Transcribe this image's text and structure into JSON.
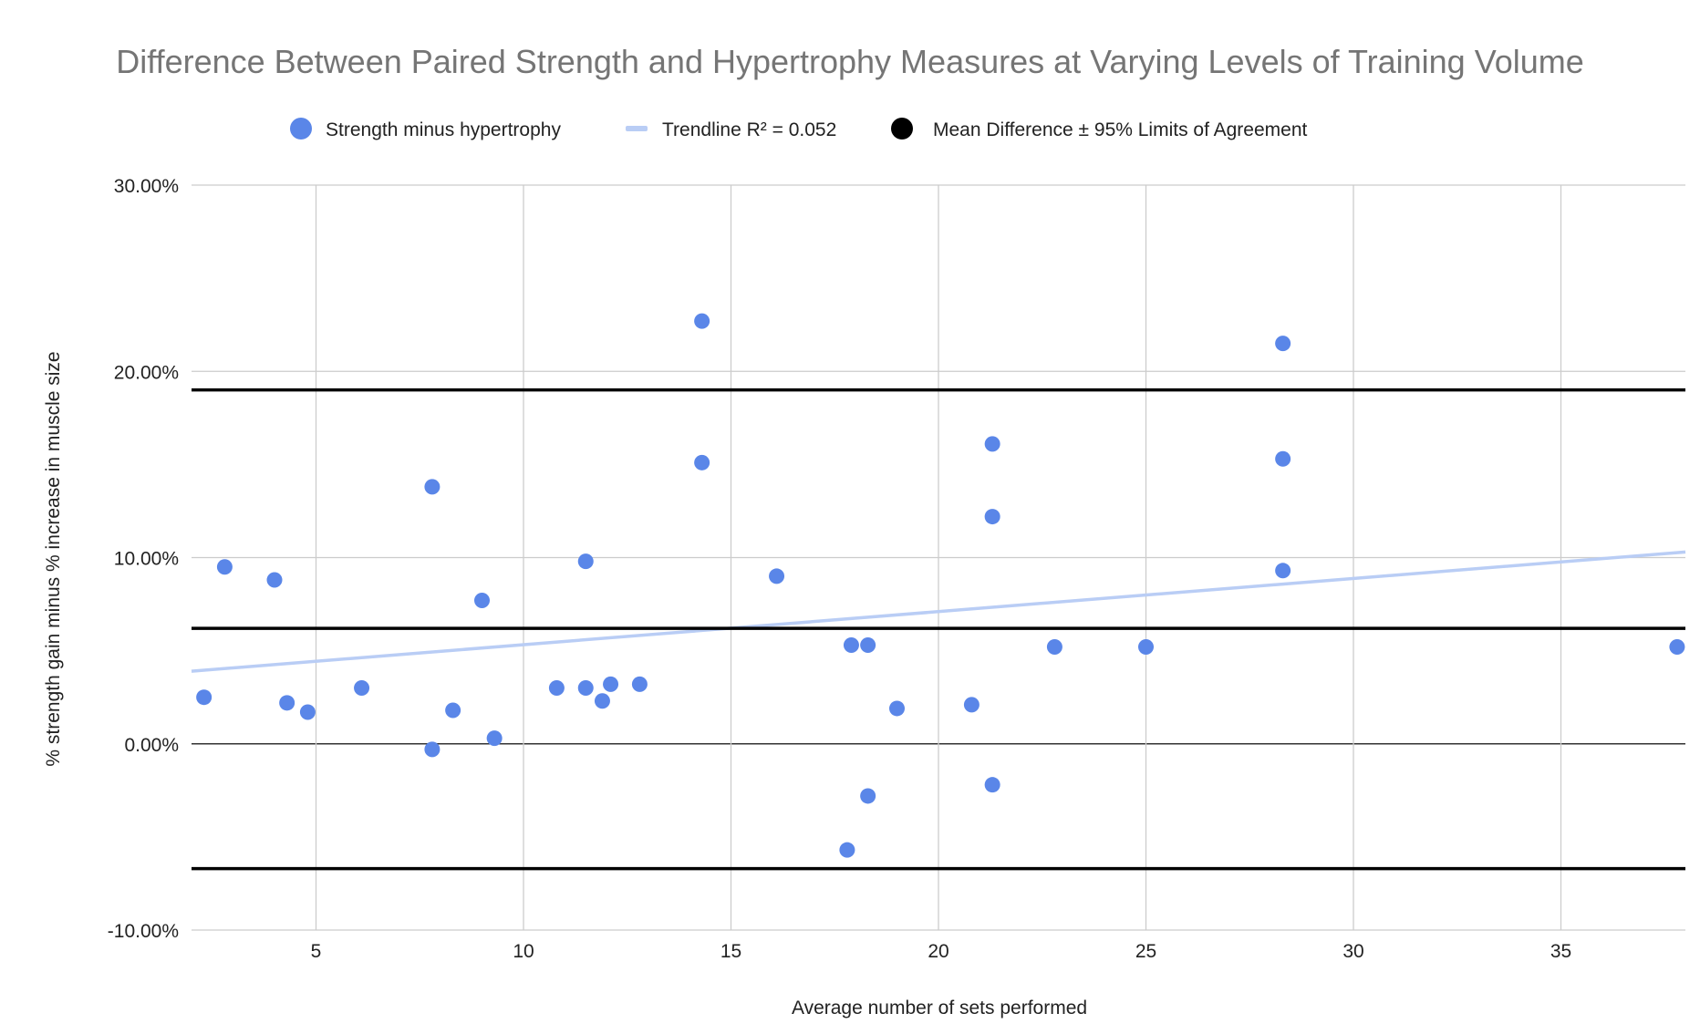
{
  "chart_data": {
    "type": "scatter",
    "title": "Difference Between Paired Strength and Hypertrophy Measures at Varying Levels of Training Volume",
    "xlabel": "Average number of sets performed",
    "ylabel": "% strength gain minus % increase in muscle size",
    "xlim": [
      2,
      38
    ],
    "ylim": [
      -10,
      30
    ],
    "x_ticks": [
      5,
      10,
      15,
      20,
      25,
      30,
      35
    ],
    "x_tick_labels": [
      "5",
      "10",
      "15",
      "20",
      "25",
      "30",
      "35"
    ],
    "y_ticks": [
      -10,
      0,
      10,
      20,
      30
    ],
    "y_tick_labels": [
      "-10.00%",
      "0.00%",
      "10.00%",
      "20.00%",
      "30.00%"
    ],
    "grid": true,
    "legend_position": "top",
    "legend": [
      {
        "label": "Strength minus hypertrophy",
        "marker": "circle",
        "color": "#5a86e8"
      },
      {
        "label": "Trendline R² = 0.052",
        "marker": "line",
        "color": "#b9cdf5"
      },
      {
        "label": "Mean Difference ± 95% Limits of Agreement",
        "marker": "circle",
        "color": "#000000"
      }
    ],
    "series": [
      {
        "name": "Strength minus hypertrophy",
        "color": "#5a86e8",
        "points": [
          {
            "x": 2.3,
            "y": 2.5
          },
          {
            "x": 2.8,
            "y": 9.5
          },
          {
            "x": 4.0,
            "y": 8.8
          },
          {
            "x": 4.3,
            "y": 2.2
          },
          {
            "x": 4.8,
            "y": 1.7
          },
          {
            "x": 6.1,
            "y": 3.0
          },
          {
            "x": 7.8,
            "y": 13.8
          },
          {
            "x": 7.8,
            "y": -0.3
          },
          {
            "x": 8.3,
            "y": 1.8
          },
          {
            "x": 9.0,
            "y": 7.7
          },
          {
            "x": 9.3,
            "y": 0.3
          },
          {
            "x": 10.8,
            "y": 3.0
          },
          {
            "x": 11.5,
            "y": 9.8
          },
          {
            "x": 11.5,
            "y": 3.0
          },
          {
            "x": 11.9,
            "y": 2.3
          },
          {
            "x": 12.1,
            "y": 3.2
          },
          {
            "x": 12.8,
            "y": 3.2
          },
          {
            "x": 14.3,
            "y": 22.7
          },
          {
            "x": 14.3,
            "y": 15.1
          },
          {
            "x": 16.1,
            "y": 9.0
          },
          {
            "x": 17.8,
            "y": -5.7
          },
          {
            "x": 17.9,
            "y": 5.3
          },
          {
            "x": 18.3,
            "y": 5.3
          },
          {
            "x": 18.3,
            "y": -2.8
          },
          {
            "x": 19.0,
            "y": 1.9
          },
          {
            "x": 20.8,
            "y": 2.1
          },
          {
            "x": 21.3,
            "y": 16.1
          },
          {
            "x": 21.3,
            "y": 12.2
          },
          {
            "x": 21.3,
            "y": -2.2
          },
          {
            "x": 22.8,
            "y": 5.2
          },
          {
            "x": 25.0,
            "y": 5.2
          },
          {
            "x": 28.3,
            "y": 21.5
          },
          {
            "x": 28.3,
            "y": 15.3
          },
          {
            "x": 28.3,
            "y": 9.3
          },
          {
            "x": 37.8,
            "y": 5.2
          }
        ]
      }
    ],
    "trendline": {
      "name": "Trendline R² = 0.052",
      "color": "#b9cdf5",
      "start": {
        "x": 2,
        "y": 3.9
      },
      "end": {
        "x": 38,
        "y": 10.3
      }
    },
    "reference_lines": {
      "name": "Mean Difference ± 95% Limits of Agreement",
      "color": "#000000",
      "values": [
        19.0,
        6.2,
        -6.7
      ]
    }
  }
}
